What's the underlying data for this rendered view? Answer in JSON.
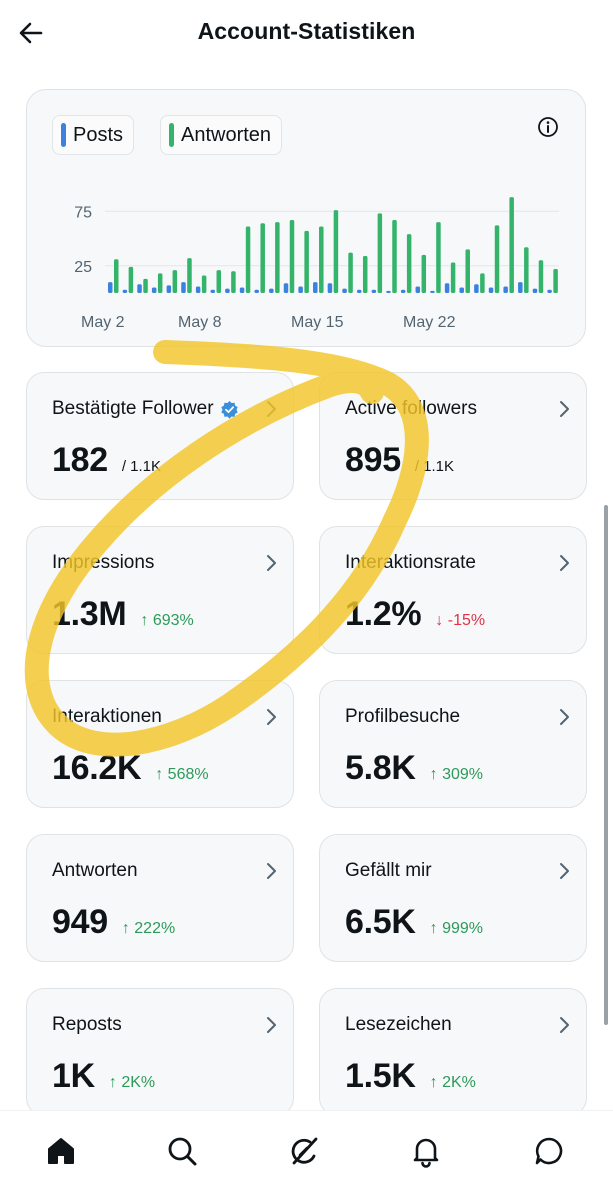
{
  "header": {
    "title": "Account-Statistiken",
    "back_icon": "arrow-left-icon"
  },
  "chart_data": {
    "type": "bar",
    "title": "",
    "legend": [
      "Posts",
      "Antworten"
    ],
    "legend_placement": "top-left",
    "colors": {
      "Posts": "#3b82e0",
      "Antworten": "#34b36a"
    },
    "x_tick_labels": [
      "May 2",
      "May 8",
      "May 15",
      "May 22"
    ],
    "y_tick_labels": [
      "75",
      "25"
    ],
    "ylim": [
      0,
      100
    ],
    "grid": true,
    "categories": [
      "1",
      "2",
      "3",
      "4",
      "5",
      "6",
      "7",
      "8",
      "9",
      "10",
      "11",
      "12",
      "13",
      "14",
      "15",
      "16",
      "17",
      "18",
      "19",
      "20",
      "21",
      "22",
      "23",
      "24",
      "25",
      "26",
      "27",
      "28",
      "29",
      "30",
      "31"
    ],
    "series": [
      {
        "name": "Posts",
        "values": [
          10,
          3,
          8,
          5,
          7,
          10,
          6,
          3,
          4,
          5,
          3,
          4,
          9,
          6,
          10,
          9,
          4,
          3,
          3,
          2,
          3,
          6,
          2,
          9,
          5,
          8,
          5,
          6,
          10,
          4,
          3
        ]
      },
      {
        "name": "Antworten",
        "values": [
          31,
          24,
          13,
          18,
          21,
          32,
          16,
          21,
          20,
          61,
          64,
          65,
          67,
          57,
          61,
          76,
          37,
          34,
          73,
          67,
          54,
          35,
          65,
          28,
          40,
          18,
          62,
          88,
          42,
          30,
          22
        ]
      }
    ]
  },
  "stats": [
    {
      "label": "Bestätigte Follower",
      "value": "182",
      "sub": "/ 1.1K"
    },
    {
      "label": "Active followers",
      "value": "895",
      "sub": "/ 1.1K"
    },
    {
      "label": "Impressions",
      "value": "1.3M",
      "change": "↑ 693%"
    },
    {
      "label": "Interaktionsrate",
      "value": "1.2%",
      "change": "↓ -15%"
    },
    {
      "label": "Interaktionen",
      "value": "16.2K",
      "change": "↑ 568%"
    },
    {
      "label": "Profilbesuche",
      "value": "5.8K",
      "change": "↑ 309%"
    },
    {
      "label": "Antworten",
      "value": "949",
      "change": "↑ 222%"
    },
    {
      "label": "Gefällt mir",
      "value": "6.5K",
      "change": "↑ 999%"
    },
    {
      "label": "Reposts",
      "value": "1K",
      "change": "↑ 2K%"
    },
    {
      "label": "Lesezeichen",
      "value": "1.5K",
      "change": "↑ 2K%"
    }
  ],
  "bottom_nav": [
    "home-icon",
    "search-icon",
    "grok-icon",
    "notifications-bell-icon",
    "messages-icon"
  ]
}
